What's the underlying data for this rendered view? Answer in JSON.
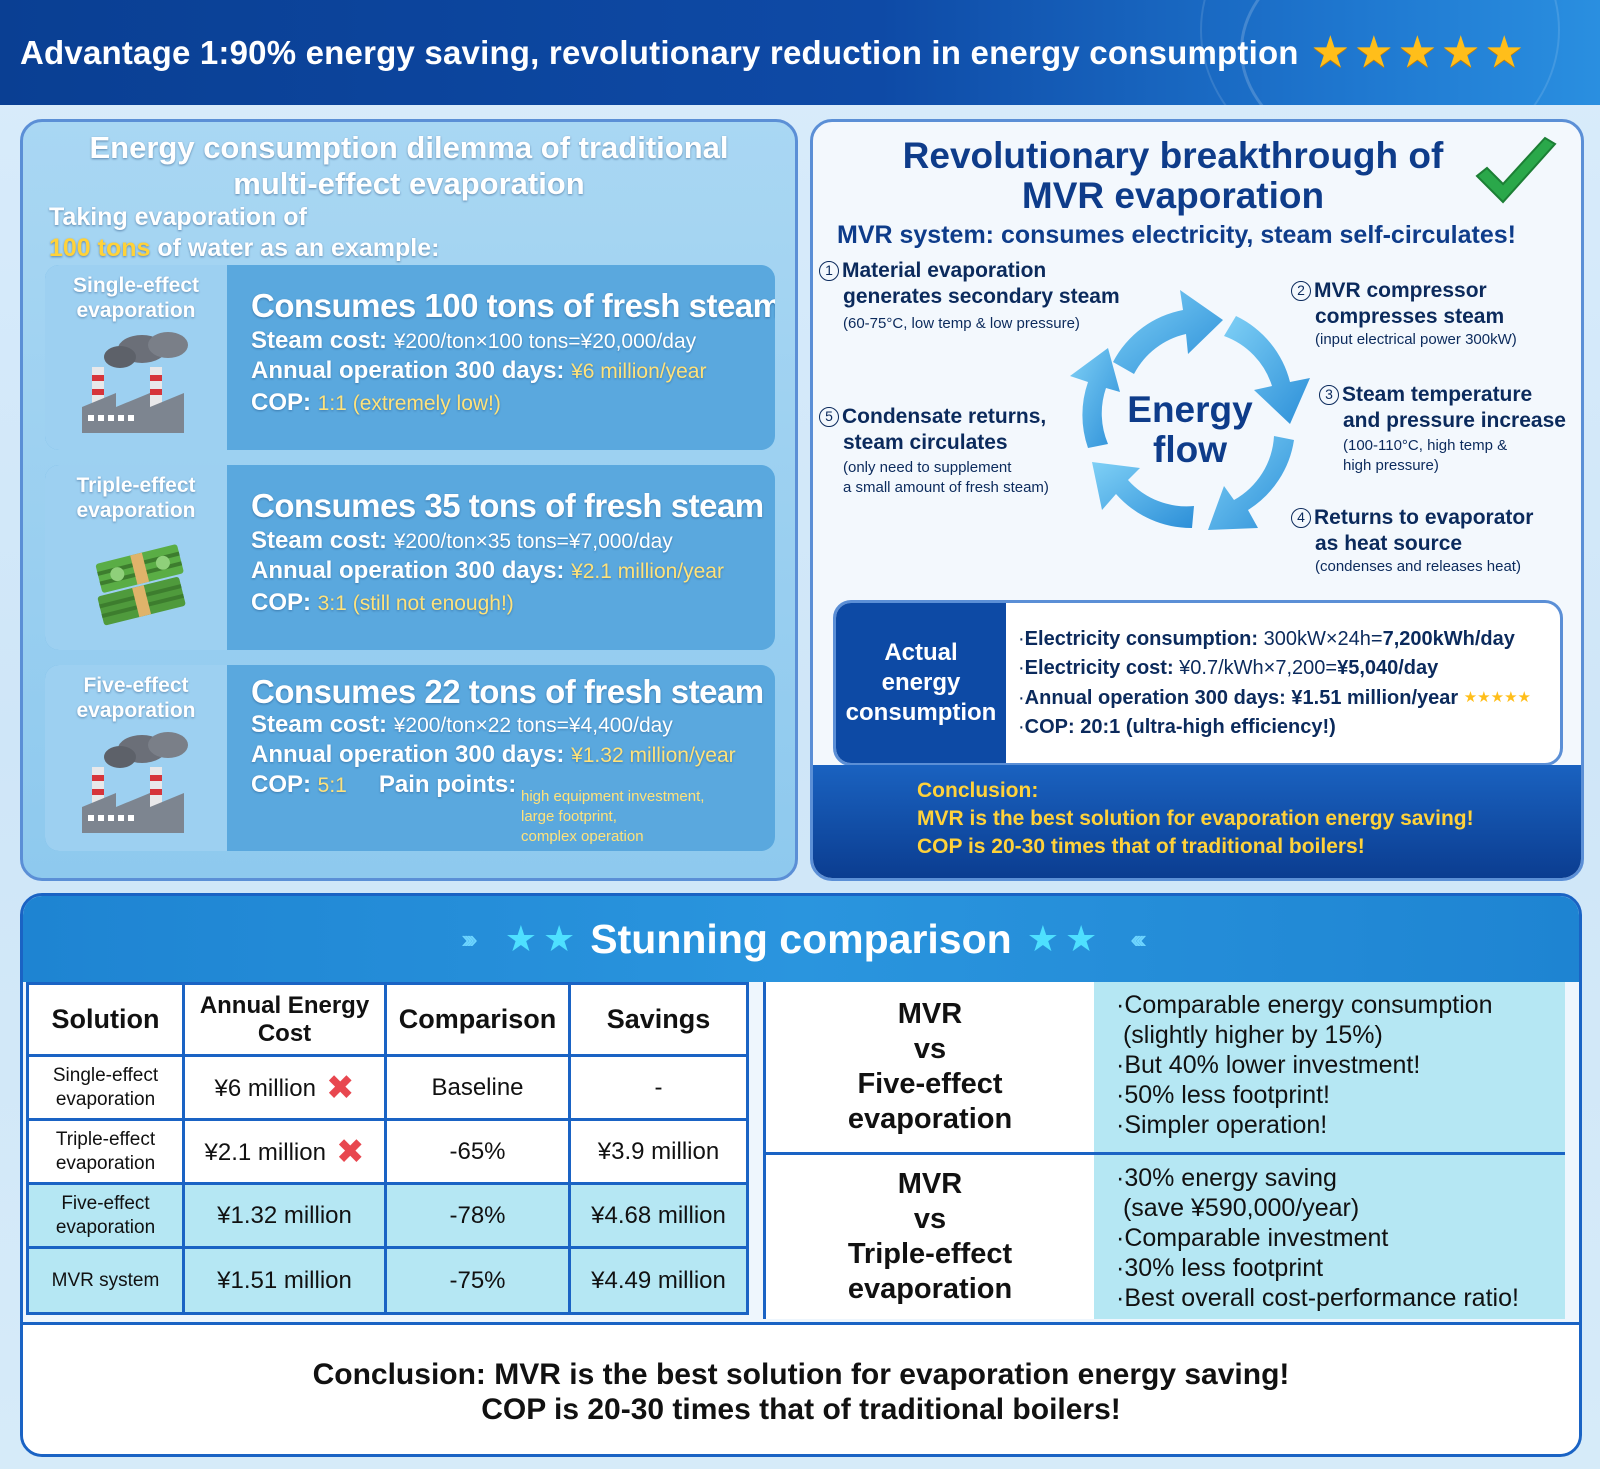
{
  "header": {
    "title": "Advantage 1:90% energy saving, revolutionary reduction in energy consumption"
  },
  "left": {
    "title_line1": "Energy consumption dilemma of traditional",
    "title_line2": "multi-effect evaporation",
    "intro_line1": "Taking evaporation of",
    "intro_highlight": "100 tons",
    "intro_rest": " of water as an example:",
    "cards": [
      {
        "label_line1": "Single-effect",
        "label_line2": "evaporation",
        "icon": "factory-icon",
        "headline": "Consumes 100 tons of fresh steam",
        "steam_label": "Steam cost:",
        "steam_value": "¥200/ton×100 tons=¥20,000/day",
        "annual_label": "Annual operation 300 days:",
        "annual_value": "¥6 million/year",
        "cop_label": "COP:",
        "cop_value": "1:1 (extremely low!)"
      },
      {
        "label_line1": "Triple-effect",
        "label_line2": "evaporation",
        "icon": "cash-stack-icon",
        "headline": "Consumes 35 tons of fresh steam",
        "steam_label": "Steam cost:",
        "steam_value": "¥200/ton×35 tons=¥7,000/day",
        "annual_label": "Annual operation 300 days:",
        "annual_value": "¥2.1 million/year",
        "cop_label": "COP:",
        "cop_value": "3:1 (still not enough!)"
      },
      {
        "label_line1": "Five-effect",
        "label_line2": "evaporation",
        "icon": "factory-icon",
        "headline": "Consumes 22 tons of fresh steam",
        "steam_label": "Steam cost:",
        "steam_value": "¥200/ton×22 tons=¥4,400/day",
        "annual_label": "Annual operation 300 days:",
        "annual_value": "¥1.32 million/year",
        "cop_label": "COP:",
        "cop_value": "5:1",
        "pain_label": "Pain points:",
        "pain_lines": [
          "high equipment investment,",
          "large footprint,",
          "complex operation"
        ]
      }
    ]
  },
  "right": {
    "title_line1": "Revolutionary breakthrough of",
    "title_line2": "MVR evaporation",
    "subtitle": "MVR system: consumes electricity, steam self-circulates!",
    "center_line1": "Energy",
    "center_line2": "flow",
    "steps": [
      {
        "num": "1",
        "l1": "Material evaporation",
        "l2": "generates secondary steam",
        "note1": "(60-75°C, low temp & low pressure)"
      },
      {
        "num": "2",
        "l1": "MVR compressor",
        "l2": "compresses steam",
        "note1": "(input electrical power 300kW)"
      },
      {
        "num": "3",
        "l1": "Steam temperature",
        "l2": "and pressure increase",
        "note1": "(100-110°C, high temp &",
        "note2": "high pressure)"
      },
      {
        "num": "4",
        "l1": "Returns to evaporator",
        "l2": "as heat source",
        "note1": "(condenses and releases heat)"
      },
      {
        "num": "5",
        "l1": "Condensate returns,",
        "l2": "steam circulates",
        "note1": "(only need to supplement",
        "note2": "a small amount of fresh steam)"
      }
    ],
    "actual_label_line1": "Actual energy",
    "actual_label_line2": "consumption",
    "actual_lines": [
      {
        "label": "Electricity consumption:",
        "value": " 300kW×24h=",
        "bold": "7,200kWh/day"
      },
      {
        "label": "Electricity cost:",
        "value": " ¥0.7/kWh×7,200=",
        "bold": "¥5,040/day"
      },
      {
        "label": "Annual operation 300 days:",
        "value": " ",
        "bold": "¥1.51 million/year"
      },
      {
        "label": "COP:",
        "value": " ",
        "bold": "20:1 (ultra-high efficiency!)"
      }
    ],
    "conclusion_title": "Conclusion:",
    "conclusion_line1": "MVR is the best solution for evaporation energy saving!",
    "conclusion_line2": "COP is 20-30 times that of traditional boilers!"
  },
  "bottom": {
    "title": "Stunning comparison",
    "headers": [
      "Solution",
      "Annual Energy Cost",
      "Comparison",
      "Savings"
    ],
    "rows": [
      {
        "solution_line1": "Single-effect",
        "solution_line2": "evaporation",
        "cost": "¥6 million",
        "comparison": "Baseline",
        "savings": "-",
        "bad": true
      },
      {
        "solution_line1": "Triple-effect",
        "solution_line2": "evaporation",
        "cost": "¥2.1 million",
        "comparison": "-65%",
        "savings": "¥3.9 million",
        "bad": true
      },
      {
        "solution_line1": "Five-effect",
        "solution_line2": "evaporation",
        "cost": "¥1.32 million",
        "comparison": "-78%",
        "savings": "¥4.68 million",
        "bad": false
      },
      {
        "solution_line1": "MVR system",
        "solution_line2": "",
        "cost": "¥1.51 million",
        "comparison": "-75%",
        "savings": "¥4.49 million",
        "bad": false
      }
    ],
    "vs": [
      {
        "l1": "MVR",
        "l2": "vs",
        "l3": "Five-effect",
        "l4": "evaporation",
        "points": [
          "·Comparable energy consumption",
          " (slightly higher by 15%)",
          "·But 40% lower investment!",
          "·50% less footprint!",
          "·Simpler operation!"
        ]
      },
      {
        "l1": "MVR",
        "l2": "vs",
        "l3": "Triple-effect",
        "l4": "evaporation",
        "points": [
          "·30% energy saving",
          " (save ¥590,000/year)",
          "·Comparable investment",
          "·30% less footprint",
          "·Best overall cost-performance ratio!"
        ]
      }
    ],
    "conclusion_line1": "Conclusion: MVR is the best solution for evaporation energy saving!",
    "conclusion_line2": "COP is 20-30 times that of traditional boilers!"
  },
  "colors": {
    "header_blue": "#0e4aa6",
    "star_gold": "#ffbe1a",
    "highlight_yellow": "#ffd23a",
    "panel_border": "#5b8fd6",
    "cross_red": "#e8474f",
    "check_green": "#2aa84a"
  }
}
